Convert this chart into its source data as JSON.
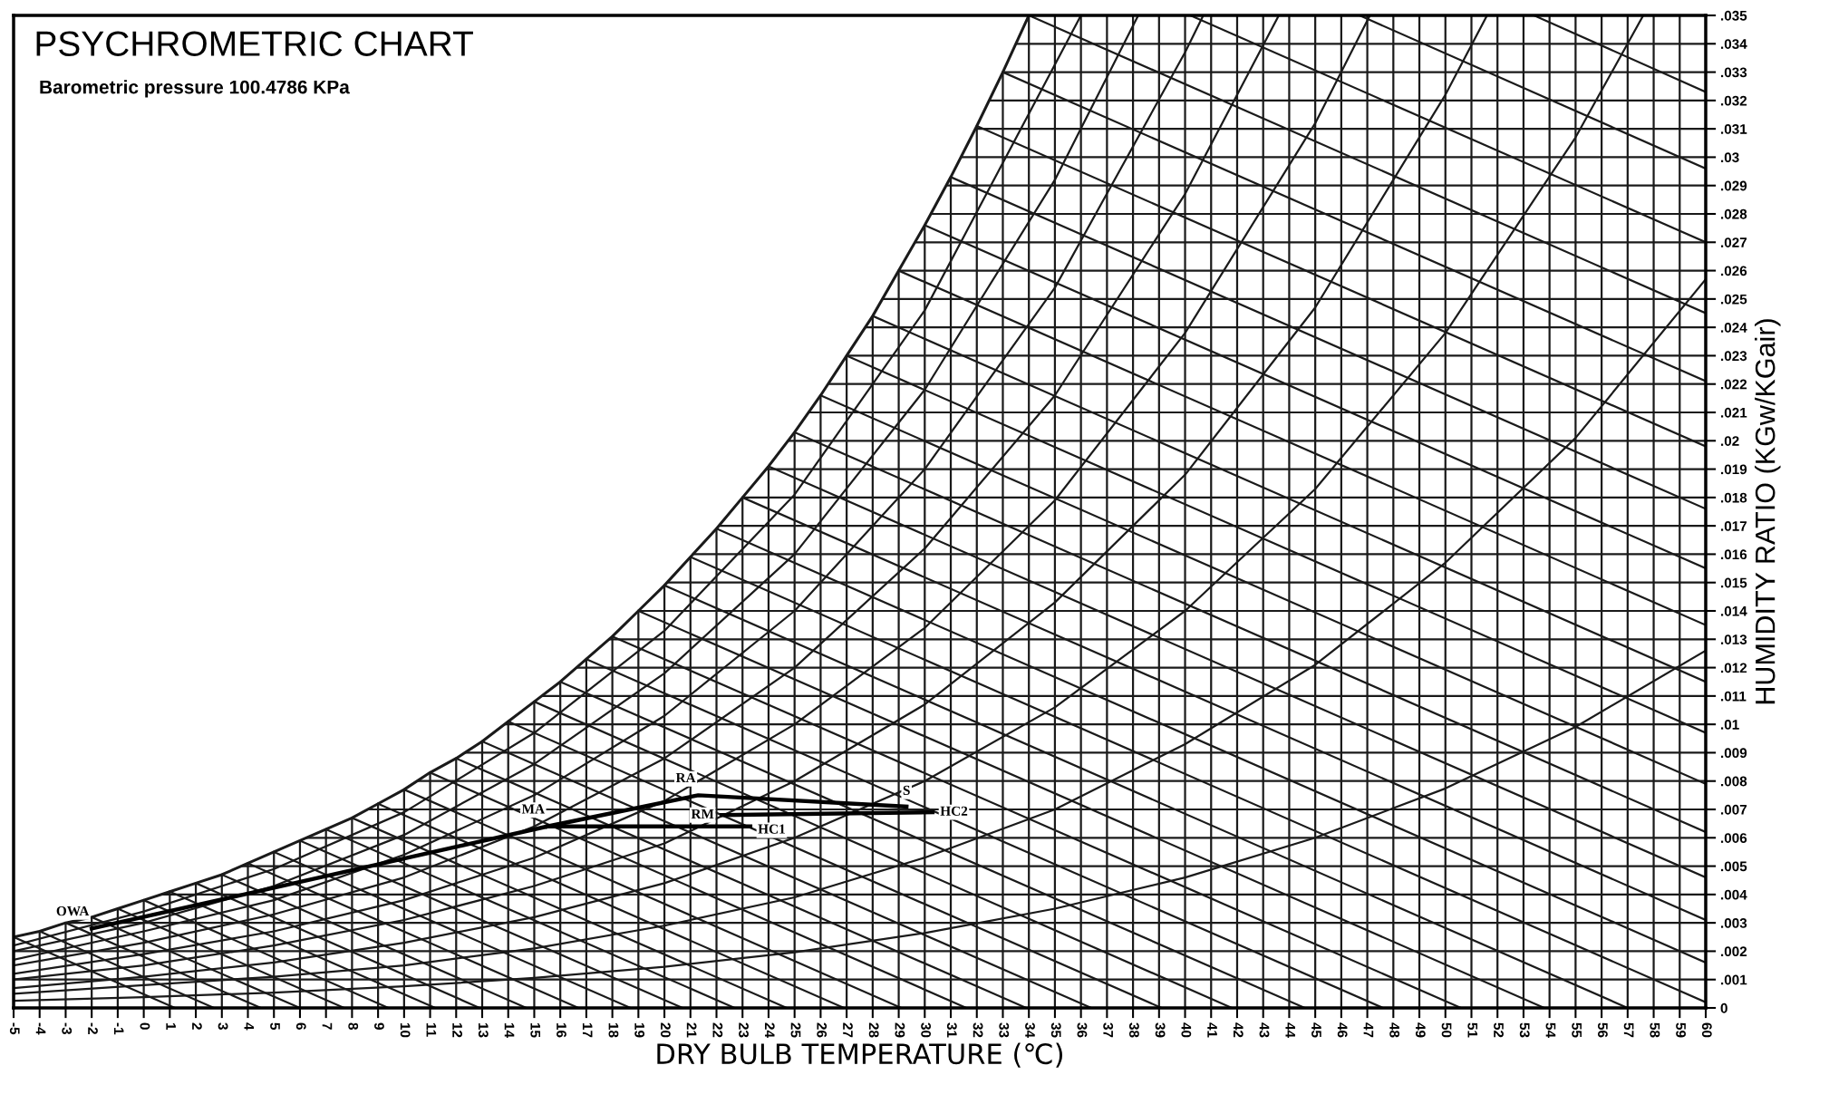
{
  "chart_data": {
    "type": "line",
    "title": "PSYCHROMETRIC CHART",
    "subtitle": "Barometric pressure 100.4786 KPa",
    "xlabel": "DRY BULB TEMPERATURE (℃)",
    "ylabel": "HUMIDITY RATIO (KGw/KGair)",
    "xlim": [
      -5,
      60
    ],
    "ylim": [
      0,
      0.035
    ],
    "xticks": [
      {
        "value": -5,
        "label": "-5"
      },
      {
        "value": -4,
        "label": "-4"
      },
      {
        "value": -3,
        "label": "-3"
      },
      {
        "value": -2,
        "label": "-2"
      },
      {
        "value": -1,
        "label": "-1"
      },
      0,
      1,
      2,
      3,
      4,
      5,
      6,
      7,
      8,
      9,
      10,
      11,
      12,
      13,
      14,
      15,
      16,
      17,
      18,
      19,
      20,
      21,
      22,
      23,
      24,
      25,
      26,
      27,
      28,
      29,
      30,
      31,
      32,
      33,
      34,
      35,
      36,
      37,
      38,
      39,
      40,
      41,
      42,
      43,
      44,
      45,
      46,
      47,
      48,
      49,
      50,
      51,
      52,
      53,
      54,
      55,
      56,
      57,
      58,
      59,
      60
    ],
    "yticks": [
      0,
      {
        "value": 0.001,
        "label": ".001"
      },
      {
        "value": 0.002,
        "label": ".002"
      },
      {
        "value": 0.003,
        "label": ".003"
      },
      {
        "value": 0.004,
        "label": ".004"
      },
      {
        "value": 0.005,
        "label": ".005"
      },
      {
        "value": 0.006,
        "label": ".006"
      },
      {
        "value": 0.007,
        "label": ".007"
      },
      {
        "value": 0.008,
        "label": ".008"
      },
      {
        "value": 0.009,
        "label": ".009"
      },
      {
        "value": 0.01,
        "label": ".01"
      },
      {
        "value": 0.011,
        "label": ".011"
      },
      {
        "value": 0.012,
        "label": ".012"
      },
      {
        "value": 0.013,
        "label": ".013"
      },
      {
        "value": 0.014,
        "label": ".014"
      },
      {
        "value": 0.015,
        "label": ".015"
      },
      {
        "value": 0.016,
        "label": ".016"
      },
      {
        "value": 0.017,
        "label": ".017"
      },
      {
        "value": 0.018,
        "label": ".018"
      },
      {
        "value": 0.019,
        "label": ".019"
      },
      {
        "value": 0.02,
        "label": ".02"
      },
      {
        "value": 0.021,
        "label": ".021"
      },
      {
        "value": 0.022,
        "label": ".022"
      },
      {
        "value": 0.023,
        "label": ".023"
      },
      {
        "value": 0.024,
        "label": ".024"
      },
      {
        "value": 0.025,
        "label": ".025"
      },
      {
        "value": 0.026,
        "label": ".026"
      },
      {
        "value": 0.027,
        "label": ".027"
      },
      {
        "value": 0.028,
        "label": ".028"
      },
      {
        "value": 0.029,
        "label": ".029"
      },
      {
        "value": 0.03,
        "label": ".03"
      },
      {
        "value": 0.031,
        "label": ".031"
      },
      {
        "value": 0.032,
        "label": ".032"
      },
      {
        "value": 0.033,
        "label": ".033"
      },
      {
        "value": 0.034,
        "label": ".034"
      },
      {
        "value": 0.035,
        "label": ".035"
      }
    ],
    "grid": true,
    "marker": "none",
    "line_style": "solid",
    "series": [
      {
        "color": "#1a1a1a",
        "x": [
          -5,
          -4,
          -3,
          -2,
          -1,
          0,
          1,
          2,
          3,
          4,
          5,
          6,
          7,
          8,
          9,
          10,
          11,
          12,
          13,
          14,
          15,
          16,
          17,
          18,
          19,
          20,
          21,
          22,
          23,
          24,
          25,
          26,
          27,
          28,
          29,
          30,
          31,
          32,
          33,
          34
        ],
        "values": [
          0.0025,
          0.0027,
          0.003,
          0.0032,
          0.0035,
          0.0038,
          0.0041,
          0.0044,
          0.0047,
          0.0051,
          0.0055,
          0.0059,
          0.0063,
          0.0067,
          0.0072,
          0.0077,
          0.0083,
          0.0088,
          0.0094,
          0.0101,
          0.0108,
          0.0115,
          0.0123,
          0.0131,
          0.014,
          0.0149,
          0.0159,
          0.0169,
          0.018,
          0.0191,
          0.0203,
          0.0216,
          0.023,
          0.0244,
          0.026,
          0.0276,
          0.0293,
          0.0311,
          0.033,
          0.035
        ]
      },
      {
        "color": "#1a1a1a",
        "x": [
          -5,
          0,
          5,
          10,
          15,
          20,
          25,
          30,
          35,
          40,
          45,
          50,
          55,
          60
        ],
        "values": [
          0.00025,
          0.00038,
          0.00054,
          0.00076,
          0.00106,
          0.00145,
          0.00196,
          0.00264,
          0.0035,
          0.0046,
          0.006,
          0.00774,
          0.00991,
          0.0126
        ]
      },
      {
        "color": "#1a1a1a",
        "x": [
          -5,
          0,
          5,
          10,
          15,
          20,
          25,
          30,
          35,
          40,
          45,
          50,
          55,
          60
        ],
        "values": [
          0.0005,
          0.0008,
          0.0011,
          0.0015,
          0.0021,
          0.0029,
          0.0039,
          0.0053,
          0.007,
          0.0093,
          0.0121,
          0.0157,
          0.0201,
          0.0257
        ]
      },
      {
        "color": "#1a1a1a",
        "x": [
          -5,
          0,
          5,
          10,
          15,
          20,
          25,
          30,
          35,
          40,
          45,
          50,
          55,
          57.6
        ],
        "values": [
          0.0007,
          0.0011,
          0.0016,
          0.0023,
          0.0032,
          0.0044,
          0.006,
          0.008,
          0.0106,
          0.014,
          0.0183,
          0.0238,
          0.0307,
          0.035
        ]
      },
      {
        "color": "#1a1a1a",
        "x": [
          -5,
          0,
          5,
          10,
          15,
          20,
          25,
          30,
          35,
          40,
          45,
          50,
          51.6
        ],
        "values": [
          0.001,
          0.0015,
          0.0022,
          0.0031,
          0.0043,
          0.0058,
          0.008,
          0.0107,
          0.0143,
          0.0188,
          0.0247,
          0.0322,
          0.035
        ]
      },
      {
        "color": "#1a1a1a",
        "x": [
          -5,
          0,
          5,
          10,
          15,
          20,
          25,
          30,
          35,
          40,
          45,
          47.1
        ],
        "values": [
          0.0012,
          0.0019,
          0.0027,
          0.0038,
          0.0053,
          0.0073,
          0.01,
          0.0134,
          0.0179,
          0.0238,
          0.0312,
          0.035
        ]
      },
      {
        "color": "#1a1a1a",
        "x": [
          -5,
          0,
          5,
          10,
          15,
          20,
          25,
          30,
          35,
          40,
          43.6
        ],
        "values": [
          0.0015,
          0.0023,
          0.0033,
          0.0046,
          0.0064,
          0.0088,
          0.012,
          0.0162,
          0.0216,
          0.0287,
          0.035
        ]
      },
      {
        "color": "#1a1a1a",
        "x": [
          -5,
          0,
          5,
          10,
          15,
          20,
          25,
          30,
          35,
          40,
          40.7
        ],
        "values": [
          0.0017,
          0.0027,
          0.0038,
          0.0054,
          0.0075,
          0.0103,
          0.014,
          0.019,
          0.0254,
          0.0337,
          0.035
        ]
      },
      {
        "color": "#1a1a1a",
        "x": [
          -5,
          0,
          5,
          10,
          15,
          20,
          25,
          30,
          35,
          38.2
        ],
        "values": [
          0.002,
          0.003,
          0.0043,
          0.0061,
          0.0086,
          0.0118,
          0.016,
          0.0218,
          0.0292,
          0.035
        ]
      },
      {
        "color": "#1a1a1a",
        "x": [
          -5,
          0,
          5,
          10,
          15,
          20,
          25,
          30,
          36
        ],
        "values": [
          0.0022,
          0.0034,
          0.0049,
          0.0069,
          0.0097,
          0.0133,
          0.0181,
          0.0246,
          0.035
        ]
      },
      {
        "color": "#1a1a1a",
        "x": [
          -5,
          1.2
        ],
        "values": [
          0.0025,
          0
        ]
      },
      {
        "color": "#1a1a1a",
        "x": [
          -4,
          2.7
        ],
        "values": [
          0.0027,
          0
        ]
      },
      {
        "color": "#1a1a1a",
        "x": [
          -3,
          4.5
        ],
        "values": [
          0.003,
          0
        ]
      },
      {
        "color": "#1a1a1a",
        "x": [
          -2,
          6
        ],
        "values": [
          0.0032,
          0
        ]
      },
      {
        "color": "#1a1a1a",
        "x": [
          -1,
          7.7
        ],
        "values": [
          0.0035,
          0
        ]
      },
      {
        "color": "#1a1a1a",
        "x": [
          0,
          9.4
        ],
        "values": [
          0.0038,
          0
        ]
      },
      {
        "color": "#1a1a1a",
        "x": [
          1,
          11.2
        ],
        "values": [
          0.0041,
          0
        ]
      },
      {
        "color": "#1a1a1a",
        "x": [
          2,
          12.9
        ],
        "values": [
          0.0044,
          0
        ]
      },
      {
        "color": "#1a1a1a",
        "x": [
          3,
          14.7
        ],
        "values": [
          0.0047,
          0
        ]
      },
      {
        "color": "#1a1a1a",
        "x": [
          4,
          16.7
        ],
        "values": [
          0.0051,
          0
        ]
      },
      {
        "color": "#1a1a1a",
        "x": [
          5,
          18.7
        ],
        "values": [
          0.0055,
          0
        ]
      },
      {
        "color": "#1a1a1a",
        "x": [
          6,
          20.7
        ],
        "values": [
          0.0059,
          0
        ]
      },
      {
        "color": "#1a1a1a",
        "x": [
          7,
          22.7
        ],
        "values": [
          0.0063,
          0
        ]
      },
      {
        "color": "#1a1a1a",
        "x": [
          8,
          24.7
        ],
        "values": [
          0.0067,
          0
        ]
      },
      {
        "color": "#1a1a1a",
        "x": [
          9,
          26.9
        ],
        "values": [
          0.0072,
          0
        ]
      },
      {
        "color": "#1a1a1a",
        "x": [
          10,
          29.1
        ],
        "values": [
          0.0077,
          0
        ]
      },
      {
        "color": "#1a1a1a",
        "x": [
          11,
          31.6
        ],
        "values": [
          0.0083,
          0
        ]
      },
      {
        "color": "#1a1a1a",
        "x": [
          12,
          33.9
        ],
        "values": [
          0.0088,
          0
        ]
      },
      {
        "color": "#1a1a1a",
        "x": [
          13,
          36.4
        ],
        "values": [
          0.0094,
          0
        ]
      },
      {
        "color": "#1a1a1a",
        "x": [
          14,
          39.1
        ],
        "values": [
          0.0101,
          0
        ]
      },
      {
        "color": "#1a1a1a",
        "x": [
          15,
          41.8
        ],
        "values": [
          0.0108,
          0
        ]
      },
      {
        "color": "#1a1a1a",
        "x": [
          16,
          44.6
        ],
        "values": [
          0.0115,
          0
        ]
      },
      {
        "color": "#1a1a1a",
        "x": [
          17,
          47.6
        ],
        "values": [
          0.0123,
          0
        ]
      },
      {
        "color": "#1a1a1a",
        "x": [
          18,
          50.6
        ],
        "values": [
          0.0131,
          0
        ]
      },
      {
        "color": "#1a1a1a",
        "x": [
          19,
          53.8
        ],
        "values": [
          0.014,
          0
        ]
      },
      {
        "color": "#1a1a1a",
        "x": [
          20,
          57
        ],
        "values": [
          0.0149,
          0
        ]
      },
      {
        "color": "#1a1a1a",
        "x": [
          21,
          60
        ],
        "values": [
          0.0159,
          0.0002
        ]
      },
      {
        "color": "#1a1a1a",
        "x": [
          22,
          60
        ],
        "values": [
          0.0169,
          0.0016
        ]
      },
      {
        "color": "#1a1a1a",
        "x": [
          23,
          60
        ],
        "values": [
          0.018,
          0.0031
        ]
      },
      {
        "color": "#1a1a1a",
        "x": [
          24,
          60
        ],
        "values": [
          0.0191,
          0.0046
        ]
      },
      {
        "color": "#1a1a1a",
        "x": [
          25,
          60
        ],
        "values": [
          0.0203,
          0.0062
        ]
      },
      {
        "color": "#1a1a1a",
        "x": [
          26,
          60
        ],
        "values": [
          0.0216,
          0.0079
        ]
      },
      {
        "color": "#1a1a1a",
        "x": [
          27,
          60
        ],
        "values": [
          0.023,
          0.0097
        ]
      },
      {
        "color": "#1a1a1a",
        "x": [
          28,
          60
        ],
        "values": [
          0.0244,
          0.0115
        ]
      },
      {
        "color": "#1a1a1a",
        "x": [
          29,
          60
        ],
        "values": [
          0.026,
          0.0135
        ]
      },
      {
        "color": "#1a1a1a",
        "x": [
          30,
          60
        ],
        "values": [
          0.0276,
          0.0155
        ]
      },
      {
        "color": "#1a1a1a",
        "x": [
          31,
          60
        ],
        "values": [
          0.0293,
          0.0176
        ]
      },
      {
        "color": "#1a1a1a",
        "x": [
          32,
          60
        ],
        "values": [
          0.0311,
          0.0198
        ]
      },
      {
        "color": "#1a1a1a",
        "x": [
          33,
          60
        ],
        "values": [
          0.033,
          0.0221
        ]
      },
      {
        "color": "#1a1a1a",
        "x": [
          34,
          60
        ],
        "values": [
          0.035,
          0.0245
        ]
      },
      {
        "color": "#1a1a1a",
        "x": [
          40.2,
          60
        ],
        "values": [
          0.035,
          0.027
        ]
      },
      {
        "color": "#1a1a1a",
        "x": [
          46.7,
          60
        ],
        "values": [
          0.035,
          0.0296
        ]
      },
      {
        "color": "#1a1a1a",
        "x": [
          53.4,
          60
        ],
        "values": [
          0.035,
          0.0323
        ]
      },
      {
        "color": "#000000",
        "x": [
          -2,
          15.5,
          23.3
        ],
        "values": [
          0.0028,
          0.0064,
          0.0064
        ]
      },
      {
        "color": "#000000",
        "x": [
          15.5,
          21.3,
          29.3
        ],
        "values": [
          0.0064,
          0.0075,
          0.0071
        ]
      },
      {
        "color": "#000000",
        "x": [
          22.2,
          30.3
        ],
        "values": [
          0.0068,
          0.0069
        ]
      }
    ],
    "annotations": [
      {
        "text": "OWA",
        "x": -2,
        "y": 0.0028
      },
      {
        "text": "MA",
        "x": 15.5,
        "y": 0.0064
      },
      {
        "text": "RA",
        "x": 21.3,
        "y": 0.0075
      },
      {
        "text": "RM",
        "x": 22.2,
        "y": 0.0068
      },
      {
        "text": "HC1",
        "x": 23.3,
        "y": 0.0064
      },
      {
        "text": "S",
        "x": 29.3,
        "y": 0.0071
      },
      {
        "text": "HC2",
        "x": 30.3,
        "y": 0.0069
      }
    ]
  }
}
